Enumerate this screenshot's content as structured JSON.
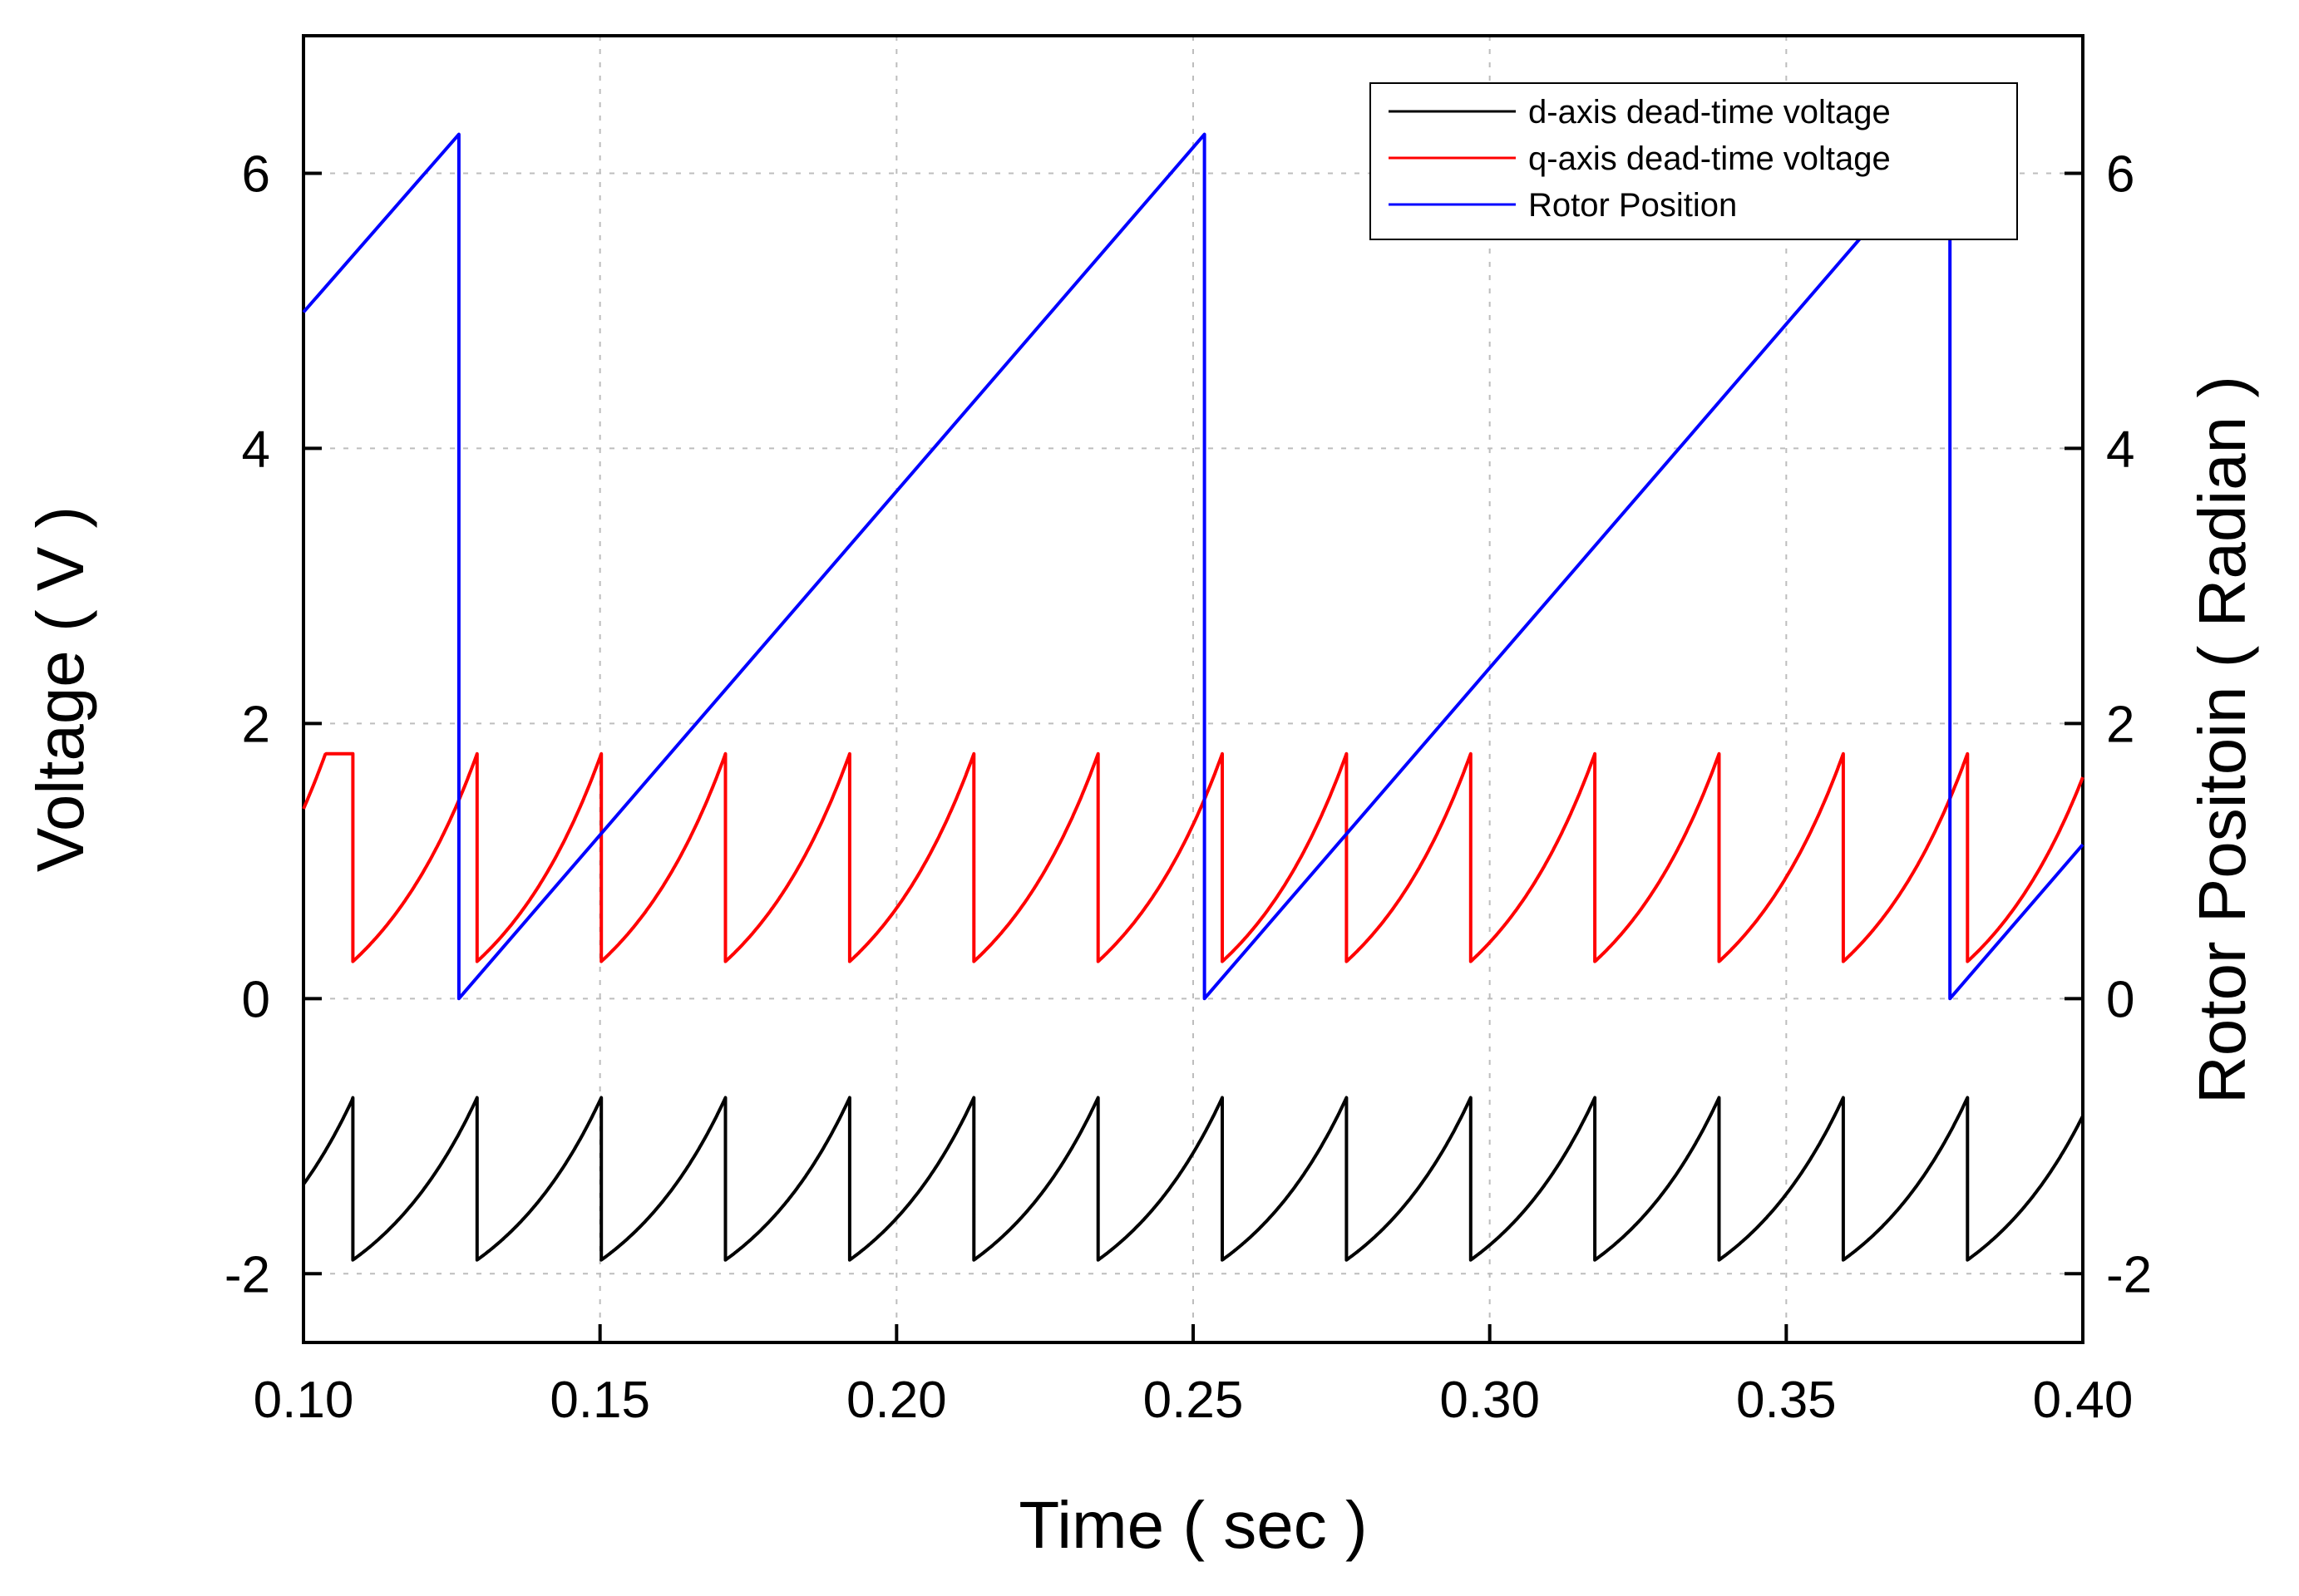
{
  "chart_data": {
    "type": "line",
    "xlabel": "Time ( sec )",
    "ylabel": "Voltage ( V )",
    "y2label": "Rotor Positoin ( Radian )",
    "xlim": [
      0.1,
      0.4
    ],
    "ylim": [
      -2.5,
      7.0
    ],
    "y2lim": [
      -2.5,
      7.0
    ],
    "x_ticks": [
      "0.10",
      "0.15",
      "0.20",
      "0.25",
      "0.30",
      "0.35",
      "0.40"
    ],
    "x_tick_values": [
      0.1,
      0.15,
      0.2,
      0.25,
      0.3,
      0.35,
      0.4
    ],
    "y_ticks": [
      "-2",
      "0",
      "2",
      "4",
      "6"
    ],
    "y_tick_values": [
      -2,
      0,
      2,
      4,
      6
    ],
    "y2_ticks": [
      "-2",
      "0",
      "2",
      "4",
      "6"
    ],
    "y2_tick_values": [
      -2,
      0,
      2,
      4,
      6
    ],
    "grid": true,
    "legend_position": "top-right",
    "series": [
      {
        "name": "d-axis dead-time voltage",
        "color": "#000000",
        "shape": "sawtooth",
        "period": 0.02094,
        "phase_start": 0.10833,
        "min": -1.9,
        "max": -0.72,
        "start_value": -1.35,
        "end_value": -0.85
      },
      {
        "name": "q-axis dead-time voltage",
        "color": "#ff0000",
        "shape": "sawtooth",
        "period": 0.02094,
        "phase_start": 0.10833,
        "min": 0.27,
        "max": 1.78,
        "start_value": 1.38,
        "end_value": 1.72
      },
      {
        "name": "Rotor Position",
        "color": "#0000ff",
        "shape": "ramp",
        "period": 0.1257,
        "wrap_times": [
          0.1262,
          0.2519,
          0.3776
        ],
        "min": 0.0,
        "max": 6.283,
        "start_value": 4.99,
        "end_value": 1.12
      }
    ]
  }
}
